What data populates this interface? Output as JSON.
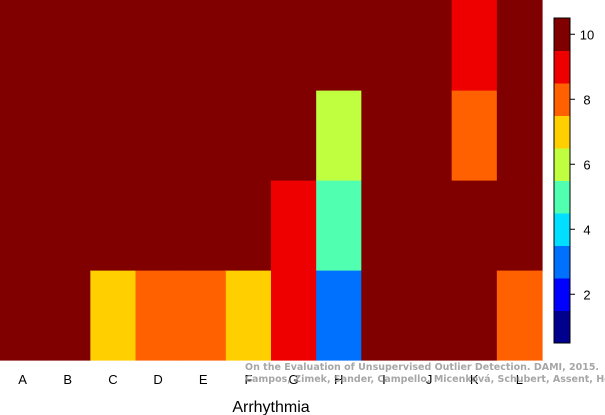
{
  "chart_data": {
    "type": "heatmap",
    "title": "",
    "xlabel": "Arrhythmia",
    "ylabel": "",
    "categories": [
      "A",
      "B",
      "C",
      "D",
      "E",
      "F",
      "G",
      "H",
      "I",
      "J",
      "K",
      "L"
    ],
    "rows_bottom_to_top": 4,
    "cells": [
      [
        10,
        10,
        10,
        10
      ],
      [
        10,
        10,
        10,
        10
      ],
      [
        6.5,
        10,
        10,
        10
      ],
      [
        7.5,
        10,
        10,
        10
      ],
      [
        7.5,
        10,
        10,
        10
      ],
      [
        6.5,
        10,
        10,
        10
      ],
      [
        8.5,
        8.5,
        10,
        10
      ],
      [
        3,
        4.5,
        5.5,
        10
      ],
      [
        10,
        10,
        10,
        10
      ],
      [
        10,
        10,
        10,
        10
      ],
      [
        10,
        10,
        7.5,
        8.5
      ],
      [
        8,
        10,
        10,
        10
      ]
    ],
    "colorbar": {
      "ticks": [
        2,
        4,
        6,
        8,
        10
      ],
      "range": [
        0.5,
        10.5
      ],
      "colors": [
        "#00008f",
        "#0000ff",
        "#0070ff",
        "#00dfff",
        "#50ffaf",
        "#c0ff40",
        "#ffcf00",
        "#ff6000",
        "#ef0000",
        "#800000"
      ]
    }
  },
  "watermark": {
    "line1": "On the Evaluation of Unsupervised Outlier Detection. DAMI, 2015.",
    "line2": "Campos, Zimek, Sander, Campello, Micenková, Schubert, Assent, Houle"
  }
}
